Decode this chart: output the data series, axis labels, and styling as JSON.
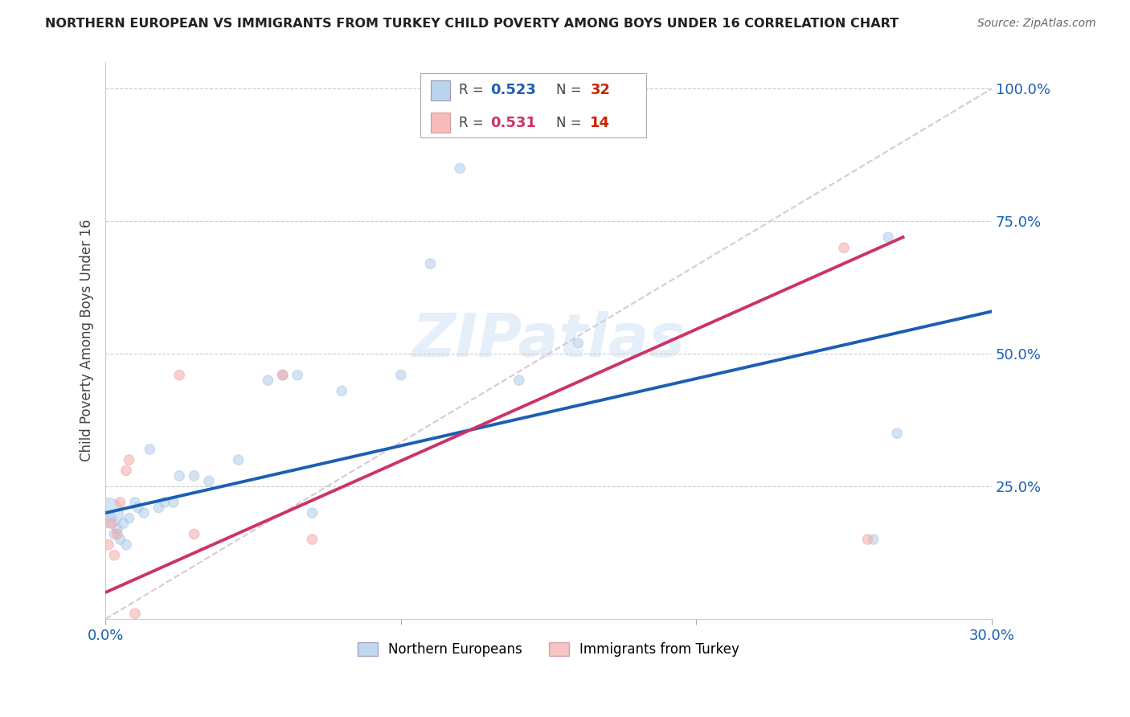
{
  "title": "NORTHERN EUROPEAN VS IMMIGRANTS FROM TURKEY CHILD POVERTY AMONG BOYS UNDER 16 CORRELATION CHART",
  "source": "Source: ZipAtlas.com",
  "ylabel": "Child Poverty Among Boys Under 16",
  "xlim": [
    0.0,
    0.3
  ],
  "ylim": [
    0.0,
    1.05
  ],
  "yticks": [
    0.0,
    0.25,
    0.5,
    0.75,
    1.0
  ],
  "ytick_labels": [
    "",
    "25.0%",
    "50.0%",
    "75.0%",
    "100.0%"
  ],
  "xticks": [
    0.0,
    0.1,
    0.2,
    0.3
  ],
  "xtick_labels": [
    "0.0%",
    "",
    "",
    "30.0%"
  ],
  "blue_color": "#A8C8E8",
  "pink_color": "#F4AAAA",
  "line_blue": "#1A5FB4",
  "line_pink": "#CC3366",
  "diag_color": "#D8C8D8",
  "watermark": "ZIPatlas",
  "ne_x": [
    0.001,
    0.002,
    0.003,
    0.004,
    0.005,
    0.006,
    0.007,
    0.008,
    0.01,
    0.011,
    0.013,
    0.015,
    0.018,
    0.02,
    0.023,
    0.025,
    0.03,
    0.035,
    0.045,
    0.055,
    0.06,
    0.065,
    0.07,
    0.08,
    0.1,
    0.11,
    0.12,
    0.14,
    0.16,
    0.26,
    0.265,
    0.268
  ],
  "ne_y": [
    0.2,
    0.19,
    0.16,
    0.17,
    0.15,
    0.18,
    0.14,
    0.19,
    0.22,
    0.21,
    0.2,
    0.32,
    0.21,
    0.22,
    0.22,
    0.27,
    0.27,
    0.26,
    0.3,
    0.45,
    0.46,
    0.46,
    0.2,
    0.43,
    0.46,
    0.67,
    0.85,
    0.45,
    0.52,
    0.15,
    0.72,
    0.35
  ],
  "ne_s": [
    700,
    80,
    80,
    80,
    80,
    80,
    80,
    80,
    80,
    80,
    80,
    80,
    80,
    80,
    80,
    80,
    80,
    80,
    80,
    80,
    80,
    80,
    80,
    80,
    80,
    80,
    80,
    80,
    80,
    80,
    80,
    80
  ],
  "tk_x": [
    0.001,
    0.002,
    0.003,
    0.004,
    0.005,
    0.007,
    0.008,
    0.01,
    0.025,
    0.03,
    0.06,
    0.07,
    0.25,
    0.258
  ],
  "tk_y": [
    0.14,
    0.18,
    0.12,
    0.16,
    0.22,
    0.28,
    0.3,
    0.01,
    0.46,
    0.16,
    0.46,
    0.15,
    0.7,
    0.15
  ],
  "tk_s": [
    80,
    80,
    80,
    80,
    80,
    80,
    80,
    80,
    80,
    80,
    80,
    80,
    80,
    80
  ],
  "ne_trend_x0": 0.0,
  "ne_trend_y0": 0.2,
  "ne_trend_x1": 0.3,
  "ne_trend_y1": 0.58,
  "tk_trend_x0": 0.0,
  "tk_trend_y0": 0.05,
  "tk_trend_x1": 0.27,
  "tk_trend_y1": 0.72
}
